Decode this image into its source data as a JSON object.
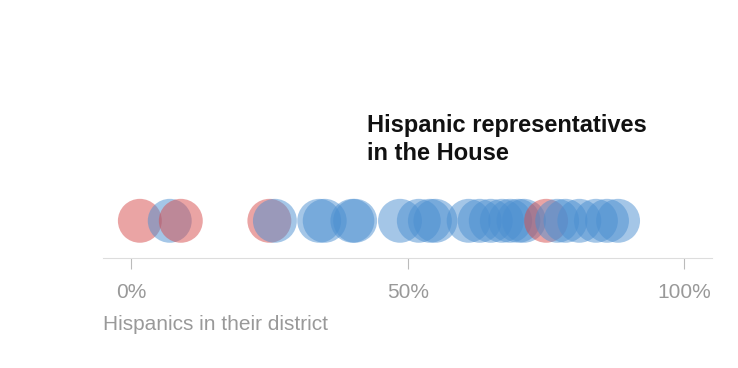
{
  "chart_data": {
    "type": "scatter",
    "title": "Hispanic representatives\nin the House",
    "x_label": "Hispanics in their district",
    "x": [
      1.6,
      7,
      9,
      25,
      26,
      34,
      35,
      40,
      40.5,
      48.6,
      52,
      54,
      55,
      61,
      63,
      65,
      67,
      68.5,
      70,
      71,
      75,
      77,
      78.5,
      81,
      84,
      86,
      88
    ],
    "colors": [
      "#d64b4b",
      "#4b8fd1",
      "#d64b4b",
      "#d64b4b",
      "#4b8fd1",
      "#4b8fd1",
      "#4b8fd1",
      "#4b8fd1",
      "#4b8fd1",
      "#4b8fd1",
      "#4b8fd1",
      "#4b8fd1",
      "#4b8fd1",
      "#4b8fd1",
      "#4b8fd1",
      "#4b8fd1",
      "#4b8fd1",
      "#4b8fd1",
      "#4b8fd1",
      "#4b8fd1",
      "#d64b4b",
      "#4b8fd1",
      "#4b8fd1",
      "#4b8fd1",
      "#4b8fd1",
      "#4b8fd1",
      "#4b8fd1"
    ],
    "xlim": [
      -5,
      105
    ],
    "xticks": [
      {
        "value": 0,
        "label": "0%"
      },
      {
        "value": 50,
        "label": "50%"
      },
      {
        "value": 100,
        "label": "100%"
      }
    ],
    "tick_labels": "x",
    "grid": false
  }
}
